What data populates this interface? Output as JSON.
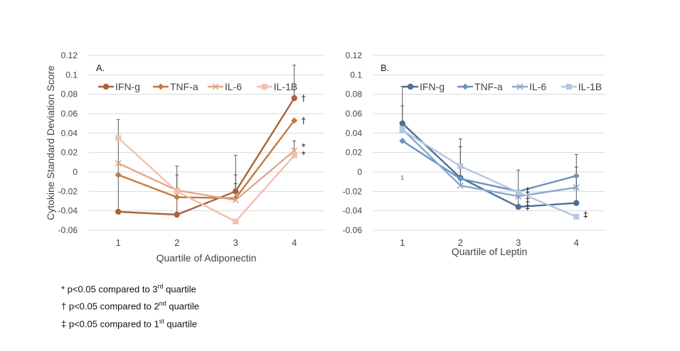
{
  "chart_data": [
    {
      "type": "line",
      "panel_label": "A.",
      "xlabel": "Quartile of Adiponectin",
      "ylabel": "Cytokine Standard Deviation Score",
      "categories": [
        "1",
        "2",
        "3",
        "4"
      ],
      "ylim": [
        -0.06,
        0.12
      ],
      "yticks": [
        "-0.06",
        "-0.04",
        "-0.02",
        "0",
        "0.02",
        "0.04",
        "0.06",
        "0.08",
        "0.1",
        "0.12"
      ],
      "grid": true,
      "legend": "top-left",
      "series": [
        {
          "name": "IFN-g",
          "color": "#a8633a",
          "marker": "circle",
          "values": [
            -0.041,
            -0.044,
            -0.02,
            0.076
          ],
          "error_upper": [
            0.054,
            0.006,
            0.017,
            0.11
          ]
        },
        {
          "name": "TNF-a",
          "color": "#c47a40",
          "marker": "diamond",
          "values": [
            -0.003,
            -0.026,
            -0.027,
            0.053
          ],
          "error_upper": [
            0.0,
            -0.003,
            -0.003,
            0.0
          ]
        },
        {
          "name": "IL-6",
          "color": "#e4a787",
          "marker": "x",
          "values": [
            0.009,
            -0.019,
            -0.029,
            0.022
          ],
          "error_upper": [
            0.0,
            0.0,
            -0.012,
            0.032
          ]
        },
        {
          "name": "IL-1B",
          "color": "#efc0b0",
          "marker": "square",
          "values": [
            0.035,
            -0.02,
            -0.051,
            0.017
          ],
          "error_upper": [
            0.0,
            0.0,
            0.0,
            0.0
          ]
        }
      ],
      "annotations": [
        {
          "text": "†",
          "x": "4",
          "y": 0.076
        },
        {
          "text": "†",
          "x": "4",
          "y": 0.053
        },
        {
          "text": "*",
          "x": "4",
          "y": 0.026
        },
        {
          "text": "*",
          "x": "4",
          "y": 0.018
        }
      ]
    },
    {
      "type": "line",
      "panel_label": "B.",
      "xlabel": "Quartile of Leptin",
      "ylabel": "",
      "categories": [
        "1",
        "2",
        "3",
        "4"
      ],
      "ylim": [
        -0.06,
        0.12
      ],
      "yticks": [
        "-0.06",
        "-0.04",
        "-0.02",
        "0",
        "0.02",
        "0.04",
        "0.06",
        "0.08",
        "0.1",
        "0.12"
      ],
      "grid": true,
      "legend": "top",
      "series": [
        {
          "name": "IFN-g",
          "color": "#4e6f98",
          "marker": "circle",
          "values": [
            0.05,
            -0.006,
            -0.036,
            -0.032
          ],
          "error_upper": [
            0.088,
            0.034,
            0.002,
            0.018
          ]
        },
        {
          "name": "TNF-a",
          "color": "#6a93c2",
          "marker": "diamond",
          "values": [
            0.032,
            -0.007,
            -0.02,
            -0.004
          ],
          "error_upper": [
            0.0,
            0.0,
            0.0,
            0.0
          ]
        },
        {
          "name": "IL-6",
          "color": "#8aa8cc",
          "marker": "x",
          "values": [
            0.044,
            -0.014,
            -0.025,
            -0.016
          ],
          "error_upper": [
            0.068,
            0.026,
            0.0,
            0.005
          ]
        },
        {
          "name": "IL-1B",
          "color": "#b4c7e3",
          "marker": "square",
          "values": [
            0.043,
            0.006,
            -0.021,
            -0.046
          ],
          "error_upper": [
            0.0,
            0.0,
            0.0,
            0.0
          ]
        }
      ],
      "annotations": [
        {
          "text": "‡",
          "x": "3",
          "y": -0.019
        },
        {
          "text": "‡",
          "x": "3",
          "y": -0.029
        },
        {
          "text": "‡",
          "x": "3",
          "y": -0.036
        },
        {
          "text": "‡",
          "x": "4",
          "y": -0.044
        }
      ],
      "stray_mark": "1"
    }
  ],
  "footnotes": {
    "f1": {
      "symbol": "*",
      "text": "p<0.05 compared to 3",
      "sup": "rd",
      "tail": "quartile"
    },
    "f2": {
      "symbol": "†",
      "text": "p<0.05 compared to 2",
      "sup": "nd",
      "tail": "quartile"
    },
    "f3": {
      "symbol": "‡",
      "text": "p<0.05 compared to 1",
      "sup": "st",
      "tail": "quartile"
    }
  }
}
